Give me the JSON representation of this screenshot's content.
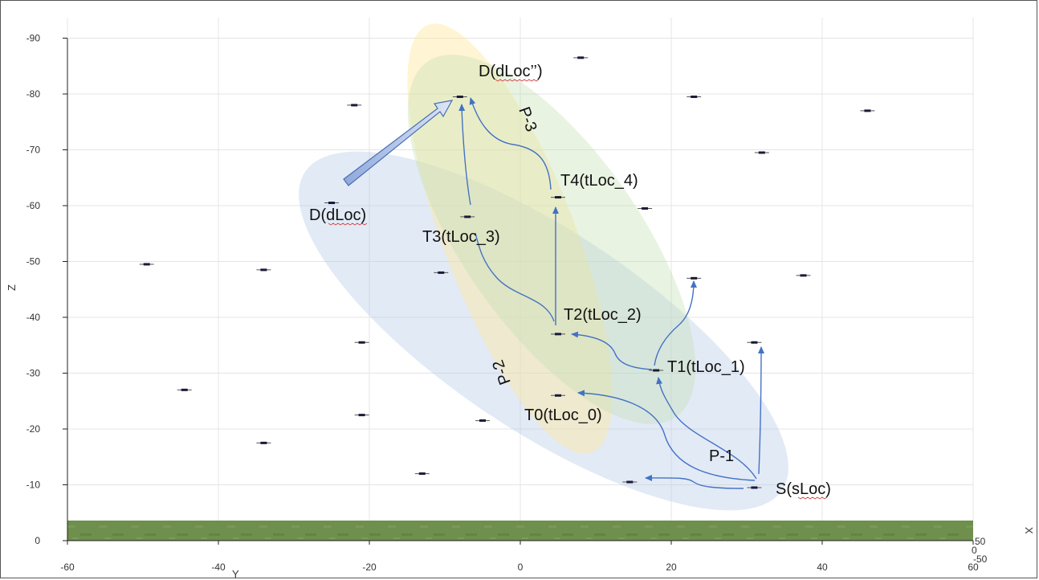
{
  "axes": {
    "x_ticks": [
      "-60",
      "-40",
      "-20",
      "0",
      "20",
      "40",
      "60"
    ],
    "z_ticks": [
      "0",
      "-10",
      "-20",
      "-30",
      "-40",
      "-50",
      "-60",
      "-70",
      "-80",
      "-90"
    ],
    "z_label": "Z",
    "y_label": "Y",
    "x_label": "X",
    "corner_labels": [
      "50",
      "0",
      "-50"
    ]
  },
  "annotations": {
    "source": "S(sLoc)",
    "t0": "T0(tLoc_0)",
    "t1": "T1(tLoc_1)",
    "t2": "T2(tLoc_2)",
    "t3": "T3(tLoc_3)",
    "t4": "T4(tLoc_4)",
    "dest": "D(dLoc)",
    "dest_alt": "D(dLoc’’)",
    "p1": "P-1",
    "p2": "P-2",
    "p3": "P-3"
  },
  "colors": {
    "ellipse_p1": "#b4c7e7",
    "ellipse_p2": "#ffe699",
    "ellipse_p3": "#c5e0b4",
    "arrow": "#4472c4",
    "ground": "#6f8f4c",
    "marker": "#1a1a3a"
  },
  "markers": [
    {
      "x": 8,
      "z": -86.5
    },
    {
      "x": -8,
      "z": -79.5
    },
    {
      "x": 23,
      "z": -79.5
    },
    {
      "x": 46,
      "z": -77
    },
    {
      "x": -22,
      "z": -78
    },
    {
      "x": 32,
      "z": -69.5
    },
    {
      "x": 5,
      "z": -61.5
    },
    {
      "x": -25,
      "z": -60.5
    },
    {
      "x": 16.5,
      "z": -59.5
    },
    {
      "x": -7,
      "z": -58
    },
    {
      "x": -49.5,
      "z": -49.5
    },
    {
      "x": -34,
      "z": -48.5
    },
    {
      "x": -10.5,
      "z": -48
    },
    {
      "x": 23,
      "z": -47
    },
    {
      "x": 37.5,
      "z": -47.5
    },
    {
      "x": 5,
      "z": -37
    },
    {
      "x": 31,
      "z": -35.5
    },
    {
      "x": -21,
      "z": -35.5
    },
    {
      "x": 18,
      "z": -30.5
    },
    {
      "x": -44.5,
      "z": -27
    },
    {
      "x": 5,
      "z": -26
    },
    {
      "x": -21,
      "z": -22.5
    },
    {
      "x": -5,
      "z": -21.5
    },
    {
      "x": -34,
      "z": -17.5
    },
    {
      "x": -13,
      "z": -12
    },
    {
      "x": 14.5,
      "z": -10.5
    },
    {
      "x": 31,
      "z": -9.5
    }
  ]
}
